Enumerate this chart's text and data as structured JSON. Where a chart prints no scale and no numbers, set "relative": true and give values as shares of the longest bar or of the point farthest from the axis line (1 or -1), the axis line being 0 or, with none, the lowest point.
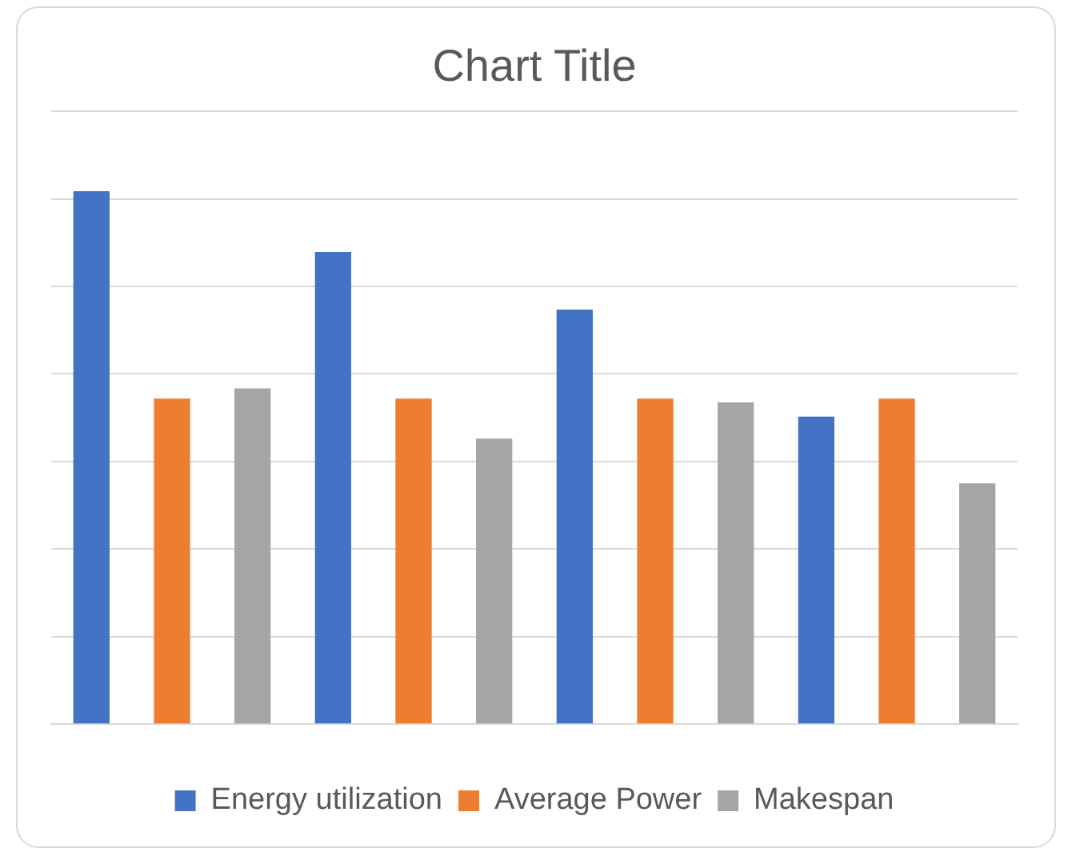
{
  "chart_data": {
    "type": "bar",
    "title": "Chart Title",
    "relative": true,
    "grid": "y",
    "legend": "bottom",
    "categories": [
      null,
      null,
      null,
      null
    ],
    "series": [
      {
        "name": "Energy utilization",
        "color": "#4472c4",
        "values": [
          1,
          0.886,
          0.778,
          0.577
        ]
      },
      {
        "name": "Average Power",
        "color": "#ed7d31",
        "values": [
          0.611,
          0.611,
          0.611,
          0.611
        ]
      },
      {
        "name": "Makespan",
        "color": "#a5a5a5",
        "values": [
          0.63,
          0.536,
          0.604,
          0.452
        ]
      }
    ]
  }
}
